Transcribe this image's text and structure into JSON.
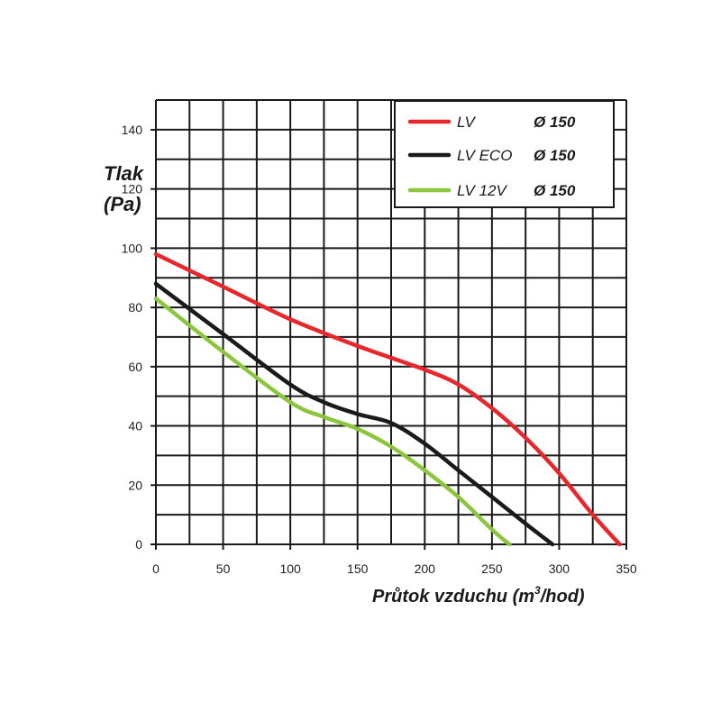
{
  "chart_data": {
    "type": "line",
    "xlabel_main": "Průtok vzduchu (m",
    "xlabel_sup": "3",
    "xlabel_end": "/hod)",
    "ylabel_line1": "Tlak",
    "ylabel_line2": "(Pa)",
    "xlim": [
      0,
      350
    ],
    "ylim": [
      0,
      150
    ],
    "x_ticks": [
      0,
      50,
      100,
      150,
      200,
      250,
      300,
      350
    ],
    "y_ticks": [
      0,
      20,
      40,
      60,
      80,
      100,
      120,
      140
    ],
    "x_tick_labels": [
      "0",
      "50",
      "100",
      "150",
      "200",
      "250",
      "300",
      "350"
    ],
    "y_tick_labels": [
      "0",
      "20",
      "40",
      "60",
      "80",
      "100",
      "120",
      "140"
    ],
    "grid": true,
    "legend_position": "top-right",
    "series": [
      {
        "name": "LV",
        "diameter": "Ø 150",
        "color": "#e8262b",
        "points": [
          [
            0,
            98
          ],
          [
            50,
            87
          ],
          [
            100,
            76
          ],
          [
            150,
            67
          ],
          [
            200,
            59
          ],
          [
            225,
            54
          ],
          [
            250,
            46
          ],
          [
            275,
            36
          ],
          [
            300,
            24
          ],
          [
            325,
            10
          ],
          [
            345,
            0
          ]
        ]
      },
      {
        "name": "LV ECO",
        "diameter": "Ø 150",
        "color": "#1a1a1a",
        "points": [
          [
            0,
            88
          ],
          [
            50,
            71
          ],
          [
            100,
            54
          ],
          [
            125,
            48
          ],
          [
            150,
            44
          ],
          [
            175,
            41
          ],
          [
            200,
            34
          ],
          [
            225,
            25
          ],
          [
            250,
            16
          ],
          [
            275,
            7
          ],
          [
            295,
            0
          ]
        ]
      },
      {
        "name": "LV 12V",
        "diameter": "Ø 150",
        "color": "#8cc63f",
        "points": [
          [
            0,
            83
          ],
          [
            50,
            65
          ],
          [
            100,
            48
          ],
          [
            125,
            43
          ],
          [
            150,
            39
          ],
          [
            175,
            33
          ],
          [
            200,
            25
          ],
          [
            225,
            16
          ],
          [
            250,
            5
          ],
          [
            263,
            0
          ]
        ]
      }
    ]
  }
}
